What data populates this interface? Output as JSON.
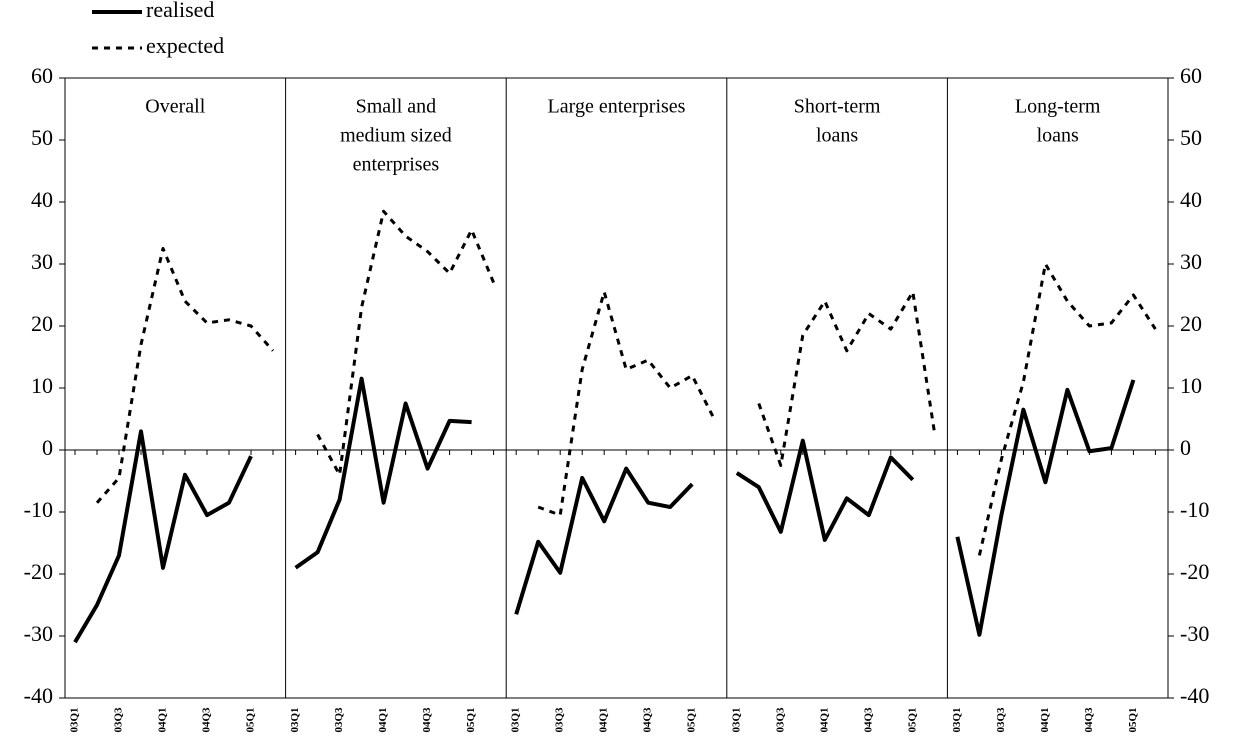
{
  "chart_data": {
    "type": "line",
    "ylim": [
      -40,
      60
    ],
    "yticks": [
      -40,
      -30,
      -20,
      -10,
      0,
      10,
      20,
      30,
      40,
      50,
      60
    ],
    "y2lim": [
      -40,
      60
    ],
    "y2ticks": [
      -40,
      -30,
      -20,
      -10,
      0,
      10,
      20,
      30,
      40,
      50,
      60
    ],
    "series": [
      {
        "name": "realised",
        "color": "#000000",
        "dash": "solid"
      },
      {
        "name": "expected",
        "color": "#000000",
        "dash": "dashed"
      }
    ],
    "panels": [
      {
        "title": [
          "Overall"
        ],
        "categories": [
          "03Q1",
          null,
          "03Q3",
          null,
          "04Q1",
          null,
          "04Q3",
          null,
          "05Q1",
          null
        ],
        "values": [
          [
            -31,
            -25,
            -17,
            3,
            -19,
            -4,
            -10.5,
            -8.5,
            -1,
            null
          ],
          [
            null,
            -8.5,
            -4.5,
            17,
            32.5,
            24,
            20.5,
            21,
            20,
            16
          ]
        ]
      },
      {
        "title": [
          "Small and",
          "medium sized",
          "enterprises"
        ],
        "categories": [
          "03Q1",
          null,
          "03Q3",
          null,
          "04Q1",
          null,
          "04Q3",
          null,
          "05Q1",
          null
        ],
        "values": [
          [
            -19,
            -16.5,
            -8,
            11.5,
            -8.5,
            7.5,
            -3,
            4.7,
            4.5,
            null
          ],
          [
            null,
            2.5,
            -4,
            23,
            38.5,
            34.5,
            32,
            28.5,
            35.5,
            27
          ]
        ]
      },
      {
        "title": [
          "Large enterprises"
        ],
        "categories": [
          "03Q1",
          null,
          "03Q3",
          null,
          "04Q1",
          null,
          "04Q3",
          null,
          "05Q1",
          null
        ],
        "values": [
          [
            -26.5,
            -14.8,
            -19.8,
            -4.5,
            -11.5,
            -3,
            -8.5,
            -9.2,
            -5.5,
            null
          ],
          [
            null,
            -9.2,
            -10.5,
            13,
            25.5,
            13,
            14.5,
            10,
            12,
            5
          ]
        ]
      },
      {
        "title": [
          "Short-term",
          "loans"
        ],
        "categories": [
          "03Q1",
          null,
          "03Q3",
          null,
          "04Q1",
          null,
          "04Q3",
          null,
          "05Q1",
          null
        ],
        "values": [
          [
            -3.7,
            -6,
            -13.2,
            1.5,
            -14.5,
            -7.8,
            -10.5,
            -1.2,
            -4.8,
            null
          ],
          [
            null,
            7.5,
            -2.5,
            18.5,
            24,
            16,
            22,
            19.5,
            25.5,
            2.5
          ]
        ]
      },
      {
        "title": [
          "Long-term",
          "loans"
        ],
        "categories": [
          "03Q1",
          null,
          "03Q3",
          null,
          "04Q1",
          null,
          "04Q3",
          null,
          "05Q1",
          null
        ],
        "values": [
          [
            -14,
            -29.8,
            -10.5,
            6.5,
            -5.2,
            9.7,
            -0.2,
            0.3,
            11.3,
            null
          ],
          [
            null,
            -17,
            -1.5,
            11,
            30,
            24,
            20,
            20.5,
            25,
            19.5
          ]
        ]
      }
    ]
  }
}
